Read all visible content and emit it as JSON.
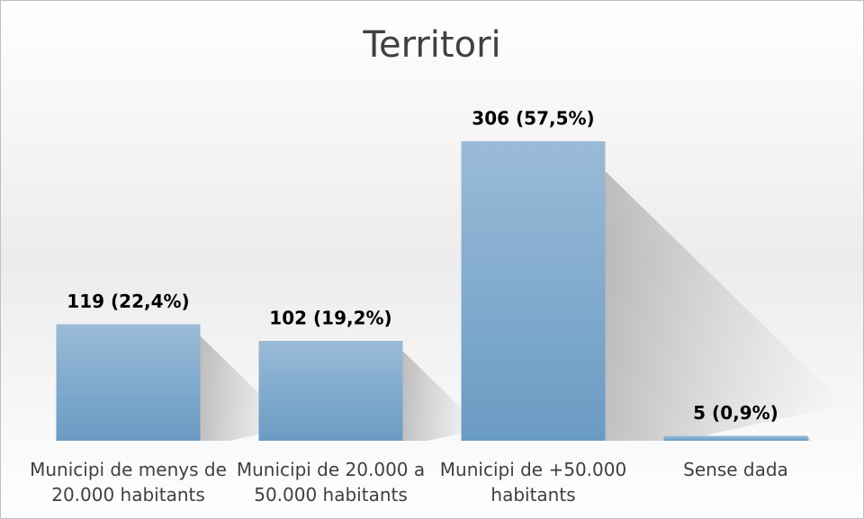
{
  "chart_data": {
    "type": "bar",
    "title": "Territori",
    "categories": [
      "Municipi de menys de 20.000 habitants",
      "Municipi de 20.000 a 50.000 habitants",
      "Municipi de +50.000 habitants",
      "Sense dada"
    ],
    "values": [
      119,
      102,
      306,
      5
    ],
    "value_labels": [
      "119 (22,4%)",
      "102 (19,2%)",
      "306 (57,5%)",
      "5 (0,9%)"
    ],
    "color": "#7fa7cc"
  }
}
